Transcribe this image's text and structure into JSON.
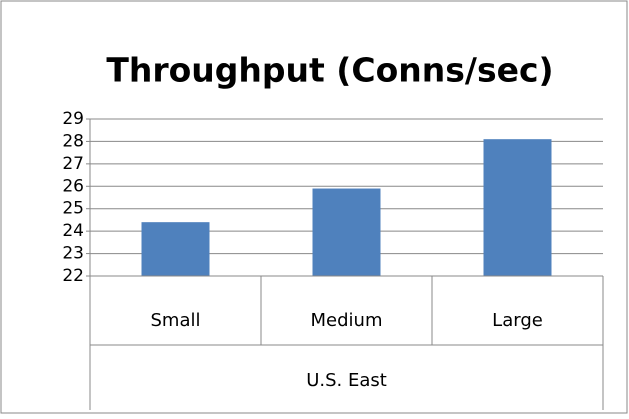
{
  "chart_data": {
    "type": "bar",
    "title": "Throughput (Conns/sec)",
    "categories": [
      "Small",
      "Medium",
      "Large"
    ],
    "group_label": "U.S. East",
    "values": [
      24.4,
      25.9,
      28.1
    ],
    "color": "#4f81bd",
    "ylim": [
      22,
      29
    ],
    "yticks": [
      22,
      23,
      24,
      25,
      26,
      27,
      28,
      29
    ],
    "grid": true
  }
}
